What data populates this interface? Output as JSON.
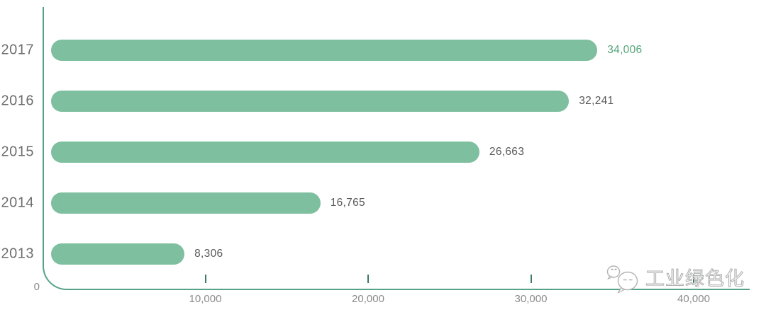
{
  "page": {
    "background": "#ffffff"
  },
  "chart_data": {
    "type": "bar",
    "orientation": "horizontal",
    "categories": [
      "2017",
      "2016",
      "2015",
      "2014",
      "2013"
    ],
    "values": [
      34006,
      32241,
      26663,
      16765,
      8306
    ],
    "value_labels": [
      "34,006",
      "32,241",
      "26,663",
      "16,765",
      "8,306"
    ],
    "value_label_colors": [
      "#53a579",
      "#58595b",
      "#58595b",
      "#58595b",
      "#58595b"
    ],
    "title": "",
    "xlabel": "",
    "ylabel": "",
    "xlim": [
      0,
      40000
    ],
    "origin_label": "0",
    "x_ticks": [
      {
        "value": 10000,
        "label": "10,000"
      },
      {
        "value": 20000,
        "label": "20,000"
      },
      {
        "value": 30000,
        "label": "30,000"
      },
      {
        "value": 40000,
        "label": "40,000"
      }
    ],
    "grid": false,
    "legend_position": "none",
    "bar_color": "#7dbf9e",
    "axis_color": "#54a289",
    "tick_color": "#3d7a66",
    "category_label_color": "#6e6e6e",
    "tick_label_color": "#8b8b8b"
  },
  "watermark": {
    "text": "工业绿色化",
    "icon": "wechat-chat-bubbles-icon",
    "color": "#b3b3b3"
  }
}
